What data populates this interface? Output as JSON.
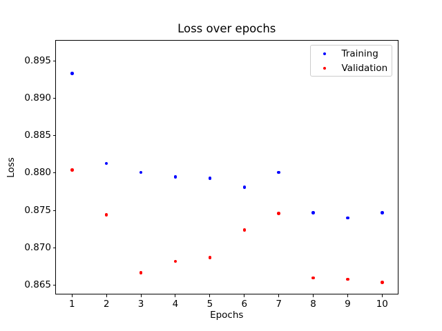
{
  "chart_data": {
    "type": "scatter",
    "title": "Loss over epochs",
    "xlabel": "Epochs",
    "ylabel": "Loss",
    "x": [
      1,
      2,
      3,
      4,
      5,
      6,
      7,
      8,
      9,
      10
    ],
    "series": [
      {
        "name": "Training",
        "color": "#0000ff",
        "values": [
          0.8933,
          0.8813,
          0.8801,
          0.8795,
          0.8793,
          0.8781,
          0.8801,
          0.8747,
          0.874,
          0.8747
        ]
      },
      {
        "name": "Validation",
        "color": "#ff0000",
        "values": [
          0.8804,
          0.8744,
          0.8667,
          0.8682,
          0.8687,
          0.8724,
          0.8746,
          0.866,
          0.8658,
          0.8654
        ]
      }
    ],
    "xticks": [
      1,
      2,
      3,
      4,
      5,
      6,
      7,
      8,
      9,
      10
    ],
    "xtick_labels": [
      "1",
      "2",
      "3",
      "4",
      "5",
      "6",
      "7",
      "8",
      "9",
      "10"
    ],
    "yticks": [
      0.865,
      0.87,
      0.875,
      0.88,
      0.885,
      0.89,
      0.895
    ],
    "ytick_labels": [
      "0.865",
      "0.870",
      "0.875",
      "0.880",
      "0.885",
      "0.890",
      "0.895"
    ],
    "xlim": [
      0.51,
      10.47
    ],
    "ylim": [
      0.8638,
      0.8978
    ],
    "grid": false,
    "legend": {
      "position": "upper right",
      "entries": [
        "Training",
        "Validation"
      ]
    },
    "background_color": "#ffffff",
    "spine_color": "#000000",
    "legend_border_color": "#cccccc"
  }
}
